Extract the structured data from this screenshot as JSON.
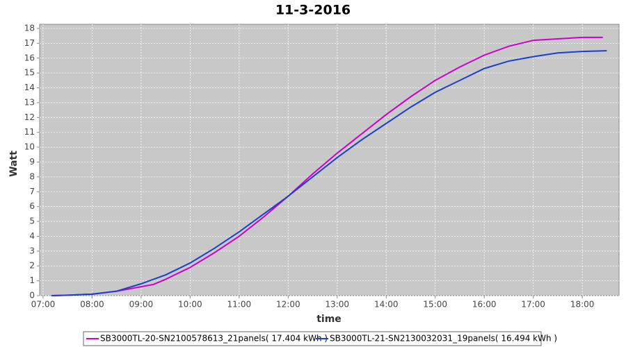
{
  "chart_data": {
    "type": "line",
    "title": "11-3-2016",
    "x_label": "time",
    "y_label": "Watt",
    "xlim": [
      6.93,
      18.75
    ],
    "xticks": [
      {
        "value": 7,
        "label": "07:00"
      },
      {
        "value": 8,
        "label": "08:00"
      },
      {
        "value": 9,
        "label": "09:00"
      },
      {
        "value": 10,
        "label": "10:00"
      },
      {
        "value": 11,
        "label": "11:00"
      },
      {
        "value": 12,
        "label": "12:00"
      },
      {
        "value": 13,
        "label": "13:00"
      },
      {
        "value": 14,
        "label": "14:00"
      },
      {
        "value": 15,
        "label": "15:00"
      },
      {
        "value": 16,
        "label": "16:00"
      },
      {
        "value": 17,
        "label": "17:00"
      },
      {
        "value": 18,
        "label": "18:00"
      }
    ],
    "ylim": [
      0,
      18.28
    ],
    "yticks": [
      0,
      1,
      2,
      3,
      4,
      5,
      6,
      7,
      8,
      9,
      10,
      11,
      12,
      13,
      14,
      15,
      16,
      17,
      18
    ],
    "grid": true,
    "legend": "bottom",
    "series": [
      {
        "name": "SB3000TL-20-SN2100578613_21panels( 17.404 kWh )",
        "color": "#cc00cc",
        "x": [
          7.17,
          7.5,
          8,
          8.5,
          9,
          9.25,
          9.5,
          10,
          10.5,
          11,
          11.5,
          12,
          12.5,
          13,
          13.5,
          14,
          14.5,
          15,
          15.5,
          16,
          16.5,
          17,
          17.5,
          18,
          18.42
        ],
        "values": [
          0,
          0.03,
          0.1,
          0.3,
          0.6,
          0.75,
          1.1,
          1.9,
          2.9,
          4.0,
          5.3,
          6.7,
          8.2,
          9.6,
          10.9,
          12.2,
          13.4,
          14.5,
          15.4,
          16.2,
          16.8,
          17.2,
          17.3,
          17.4,
          17.4
        ]
      },
      {
        "name": "SB3000TL-21-SN2130032031_19panels( 16.494 kWh )",
        "color": "#1a3fcc",
        "x": [
          7.17,
          7.5,
          8,
          8.5,
          9,
          9.5,
          10,
          10.5,
          11,
          11.5,
          12,
          12.5,
          13,
          13.5,
          14,
          14.5,
          15,
          15.5,
          16,
          16.5,
          17,
          17.5,
          18,
          18.5
        ],
        "values": [
          0,
          0.03,
          0.1,
          0.3,
          0.8,
          1.4,
          2.2,
          3.2,
          4.3,
          5.5,
          6.7,
          8.0,
          9.3,
          10.5,
          11.6,
          12.7,
          13.7,
          14.5,
          15.3,
          15.8,
          16.1,
          16.35,
          16.45,
          16.5
        ]
      }
    ]
  }
}
